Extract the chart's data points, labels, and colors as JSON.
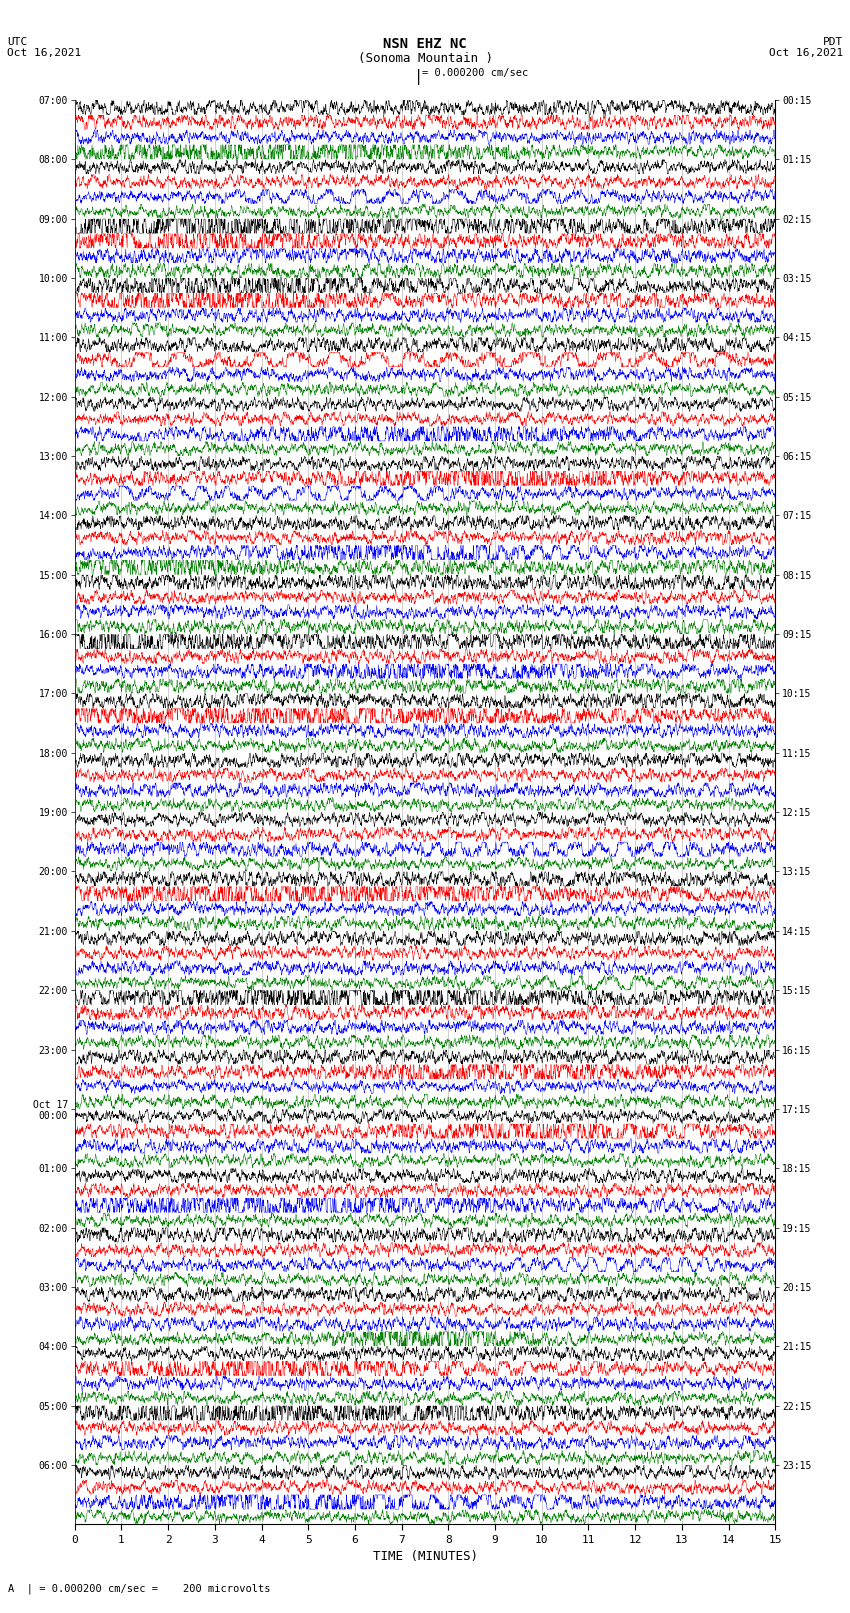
{
  "title_line1": "NSN EHZ NC",
  "title_line2": "(Sonoma Mountain )",
  "scale_label": "| = 0.000200 cm/sec",
  "left_date_label": "UTC\nOct 16,2021",
  "right_date_label": "PDT\nOct 16,2021",
  "xlabel": "TIME (MINUTES)",
  "bottom_label": "A  | = 0.000200 cm/sec =    200 microvolts",
  "utc_times": [
    "07:00",
    "08:00",
    "09:00",
    "10:00",
    "11:00",
    "12:00",
    "13:00",
    "14:00",
    "15:00",
    "16:00",
    "17:00",
    "18:00",
    "19:00",
    "20:00",
    "21:00",
    "22:00",
    "23:00",
    "Oct 17\n00:00",
    "01:00",
    "02:00",
    "03:00",
    "04:00",
    "05:00",
    "06:00"
  ],
  "pdt_times": [
    "00:15",
    "01:15",
    "02:15",
    "03:15",
    "04:15",
    "05:15",
    "06:15",
    "07:15",
    "08:15",
    "09:15",
    "10:15",
    "11:15",
    "12:15",
    "13:15",
    "14:15",
    "15:15",
    "16:15",
    "17:15",
    "18:15",
    "19:15",
    "20:15",
    "21:15",
    "22:15",
    "23:15"
  ],
  "n_rows": 24,
  "traces_per_row": 4,
  "colors": [
    "black",
    "red",
    "blue",
    "green"
  ],
  "fig_width": 8.5,
  "fig_height": 16.13,
  "background_color": "white",
  "x_min": 0,
  "x_max": 15,
  "x_ticks": [
    0,
    1,
    2,
    3,
    4,
    5,
    6,
    7,
    8,
    9,
    10,
    11,
    12,
    13,
    14,
    15
  ],
  "grid_color": "#888888",
  "lw": 0.35
}
